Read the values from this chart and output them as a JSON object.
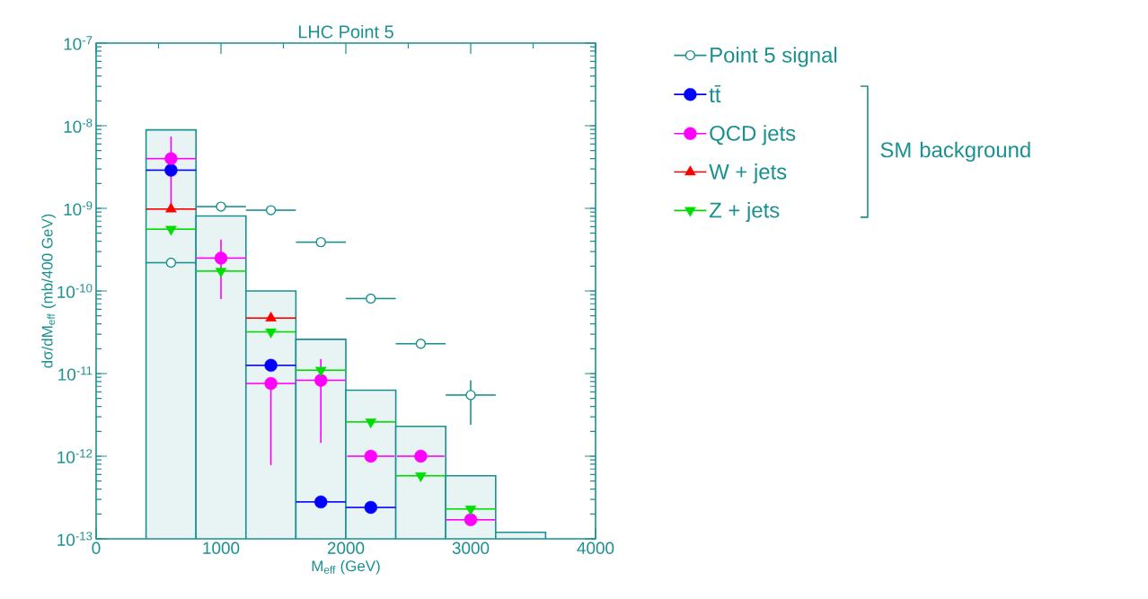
{
  "chart_data": {
    "type": "scatter",
    "title": "LHC Point 5",
    "xlabel": "M$_{eff}$ (GeV)",
    "ylabel": "dσ/dM$_{eff}$ (mb/400 GeV)",
    "log": "y",
    "xlim": [
      0,
      4000
    ],
    "xticks": [
      0,
      1000,
      2000,
      3000,
      4000
    ],
    "ylim": [
      1e-13,
      1e-07
    ],
    "yticks": [
      {
        "value": 1e-13,
        "label": "10$^{-13}$"
      },
      {
        "value": 1e-12,
        "label": "10$^{-12}$"
      },
      {
        "value": 1e-11,
        "label": "10$^{-11}$"
      },
      {
        "value": 1e-10,
        "label": "10$^{-10}$"
      },
      {
        "value": 1e-09,
        "label": "10$^{-9}$"
      },
      {
        "value": 1e-08,
        "label": "10$^{-8}$"
      },
      {
        "value": 1e-07,
        "label": "10$^{-7}$"
      }
    ],
    "grid": false,
    "legend": "right",
    "annotations": [
      "SM background"
    ],
    "x": [
      600,
      1000,
      1400,
      1800,
      2200,
      2600,
      3000
    ],
    "series": [
      {
        "type": "histogram",
        "color": "#1a9090",
        "bins": [
          400,
          800,
          1200,
          1600,
          2000,
          2400,
          2800,
          3200,
          3600
        ],
        "values": [
          8.9e-09,
          8.1e-10,
          1e-10,
          2.6e-11,
          6.3e-12,
          2.3e-12,
          5.8e-13,
          1.2e-13
        ]
      },
      {
        "name": "Point 5 signal",
        "color": "#1a9090",
        "marker": "circle",
        "values": [
          2.2e-10,
          1.05e-09,
          9.5e-10,
          3.9e-10,
          8.1e-11,
          2.3e-11,
          5.5e-12
        ],
        "xerrors": [
          200,
          200,
          200,
          200,
          200,
          200,
          200
        ],
        "errors": [
          null,
          null,
          null,
          null,
          null,
          null,
          [
            2.4e-12,
            8.3e-12
          ]
        ]
      },
      {
        "name": "tt̄",
        "color": "#0000ff",
        "marker": "circle",
        "values": [
          2.9e-09,
          null,
          1.26e-11,
          2.8e-13,
          2.4e-13,
          null,
          null
        ],
        "xerrors": [
          200,
          null,
          200,
          200,
          200,
          null,
          null
        ]
      },
      {
        "name": "QCD jets",
        "color": "#ff00ff",
        "marker": "circle",
        "values": [
          4e-09,
          2.5e-10,
          7.6e-12,
          8.3e-12,
          1e-12,
          1e-12,
          1.7e-13
        ],
        "xerrors": [
          200,
          200,
          200,
          200,
          190,
          190,
          200
        ],
        "errors": [
          [
            1.05e-09,
            7.4e-09
          ],
          [
            8e-11,
            4.2e-10
          ],
          [
            7.8e-13,
            7.6e-12
          ],
          [
            1.45e-12,
            1.5e-11
          ],
          null,
          null,
          null
        ]
      },
      {
        "name": "W + jets",
        "color": "#ff0000",
        "marker": "triangle",
        "values": [
          9.8e-10,
          null,
          4.7e-11,
          null,
          null,
          null,
          null
        ],
        "xerrors": [
          200,
          null,
          200,
          null,
          null,
          null,
          null
        ]
      },
      {
        "name": "Z + jets",
        "color": "#00dd00",
        "marker": "triangle down",
        "values": [
          5.6e-10,
          1.74e-10,
          3.2e-11,
          1.1e-11,
          2.6e-12,
          5.8e-13,
          2.3e-13
        ],
        "xerrors": [
          200,
          200,
          200,
          200,
          200,
          200,
          200
        ]
      }
    ]
  }
}
